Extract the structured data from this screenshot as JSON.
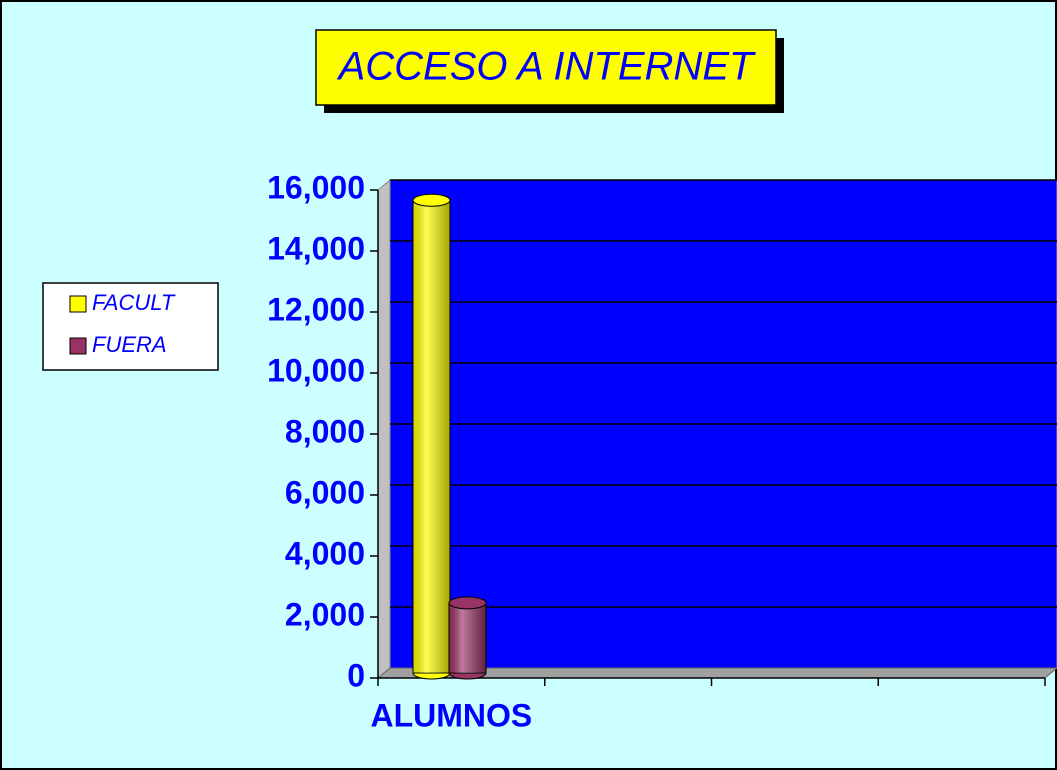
{
  "chart_data": {
    "type": "bar3d",
    "title": "ACCESO A INTERNET",
    "categories": [
      "ALUMNOS",
      null,
      null,
      null
    ],
    "series": [
      {
        "name": "FACULT",
        "color": "#ffff00",
        "values": [
          15500,
          null,
          null,
          null
        ]
      },
      {
        "name": "FUERA",
        "color": "#993366",
        "values": [
          2300,
          null,
          null,
          null
        ]
      }
    ],
    "ylim": [
      0,
      16000
    ],
    "yticks": [
      0,
      {
        "value": 2000,
        "label": "2,000"
      },
      {
        "value": 4000,
        "label": "4,000"
      },
      {
        "value": 6000,
        "label": "6,000"
      },
      {
        "value": 8000,
        "label": "8,000"
      },
      {
        "value": 10000,
        "label": "10,000"
      },
      {
        "value": 12000,
        "label": "12,000"
      },
      {
        "value": 14000,
        "label": "14,000"
      },
      {
        "value": 16000,
        "label": "16,000"
      }
    ],
    "grid": true,
    "legend": "left"
  }
}
